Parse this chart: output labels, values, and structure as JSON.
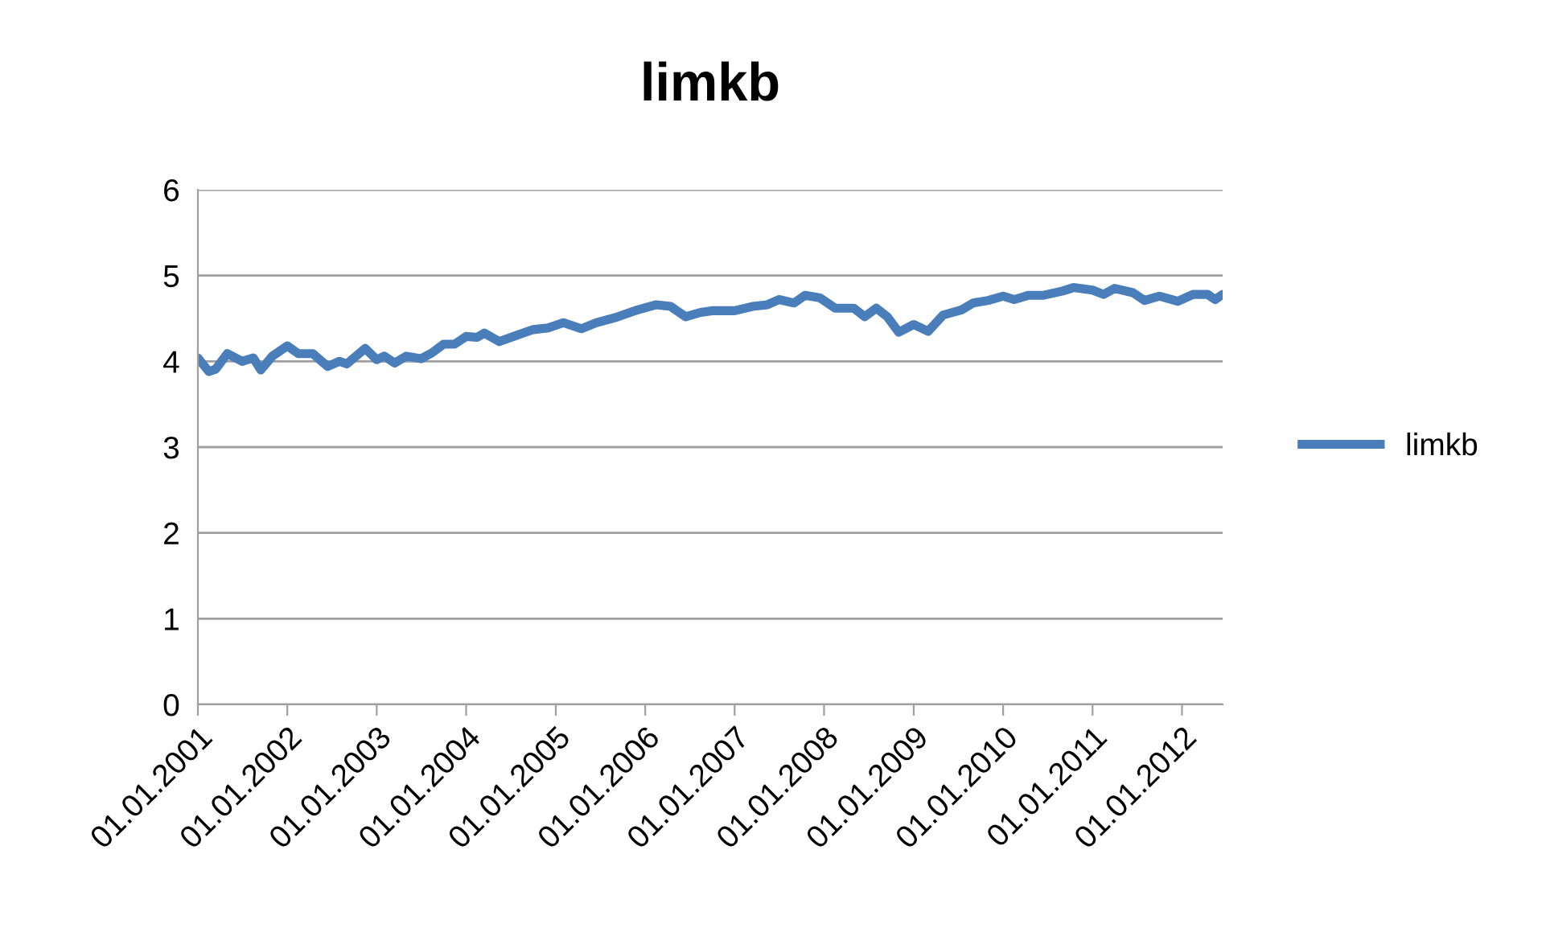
{
  "chart_data": {
    "type": "line",
    "title": "limkb",
    "legend": "right",
    "grid": "y",
    "ylim": [
      0,
      6
    ],
    "yticks": [
      0,
      1,
      2,
      3,
      4,
      5,
      6
    ],
    "xlim": [
      "2001-01-01",
      "2012-06-15"
    ],
    "xticks": [
      {
        "value": "2001-01-01",
        "label": "01.01.2001"
      },
      {
        "value": "2002-01-01",
        "label": "01.01.2002"
      },
      {
        "value": "2003-01-01",
        "label": "01.01.2003"
      },
      {
        "value": "2004-01-01",
        "label": "01.01.2004"
      },
      {
        "value": "2005-01-01",
        "label": "01.01.2005"
      },
      {
        "value": "2006-01-01",
        "label": "01.01.2006"
      },
      {
        "value": "2007-01-01",
        "label": "01.01.2007"
      },
      {
        "value": "2008-01-01",
        "label": "01.01.2008"
      },
      {
        "value": "2009-01-01",
        "label": "01.01.2009"
      },
      {
        "value": "2010-01-01",
        "label": "01.01.2010"
      },
      {
        "value": "2011-01-01",
        "label": "01.01.2011"
      },
      {
        "value": "2012-01-01",
        "label": "01.01.2012"
      }
    ],
    "x": [
      "2001-01-01",
      "2001-02-15",
      "2001-03-15",
      "2001-05-01",
      "2001-07-01",
      "2001-08-15",
      "2001-09-15",
      "2001-11-01",
      "2002-01-01",
      "2002-02-15",
      "2002-04-15",
      "2002-06-15",
      "2002-08-01",
      "2002-09-01",
      "2002-11-15",
      "2003-01-01",
      "2003-02-01",
      "2003-03-15",
      "2003-05-01",
      "2003-07-01",
      "2003-08-15",
      "2003-10-01",
      "2003-11-15",
      "2004-01-01",
      "2004-02-15",
      "2004-03-15",
      "2004-05-15",
      "2004-08-01",
      "2004-10-01",
      "2004-12-01",
      "2005-02-01",
      "2005-04-15",
      "2005-06-15",
      "2005-09-01",
      "2005-10-01",
      "2005-12-01",
      "2006-02-15",
      "2006-04-15",
      "2006-06-15",
      "2006-08-15",
      "2006-10-01",
      "2006-11-01",
      "2007-01-01",
      "2007-03-15",
      "2007-05-15",
      "2007-07-01",
      "2007-09-01",
      "2007-10-15",
      "2007-12-15",
      "2008-02-15",
      "2008-05-01",
      "2008-06-15",
      "2008-08-01",
      "2008-09-15",
      "2008-11-01",
      "2009-01-01",
      "2009-03-01",
      "2009-05-01",
      "2009-07-15",
      "2009-09-01",
      "2009-11-01",
      "2010-01-01",
      "2010-02-15",
      "2010-04-15",
      "2010-06-15",
      "2010-09-01",
      "2010-10-15",
      "2011-01-01",
      "2011-02-15",
      "2011-04-01",
      "2011-06-15",
      "2011-08-01",
      "2011-10-01",
      "2011-12-15",
      "2012-02-15",
      "2012-04-15",
      "2012-05-15",
      "2012-06-15"
    ],
    "series": [
      {
        "name": "limkb",
        "color": "#4a7ebb",
        "values": [
          4.04,
          3.88,
          3.91,
          4.09,
          4.0,
          4.04,
          3.9,
          4.06,
          4.18,
          4.09,
          4.09,
          3.94,
          4.0,
          3.97,
          4.15,
          4.02,
          4.06,
          3.98,
          4.06,
          4.03,
          4.1,
          4.2,
          4.2,
          4.29,
          4.28,
          4.33,
          4.23,
          4.31,
          4.37,
          4.39,
          4.45,
          4.38,
          4.45,
          4.51,
          4.54,
          4.6,
          4.66,
          4.64,
          4.52,
          4.57,
          4.59,
          4.59,
          4.59,
          4.64,
          4.66,
          4.72,
          4.68,
          4.77,
          4.74,
          4.62,
          4.62,
          4.52,
          4.62,
          4.52,
          4.34,
          4.43,
          4.35,
          4.54,
          4.6,
          4.68,
          4.71,
          4.76,
          4.72,
          4.77,
          4.77,
          4.82,
          4.86,
          4.83,
          4.78,
          4.85,
          4.8,
          4.71,
          4.76,
          4.7,
          4.78,
          4.78,
          4.72,
          4.78
        ]
      }
    ]
  }
}
